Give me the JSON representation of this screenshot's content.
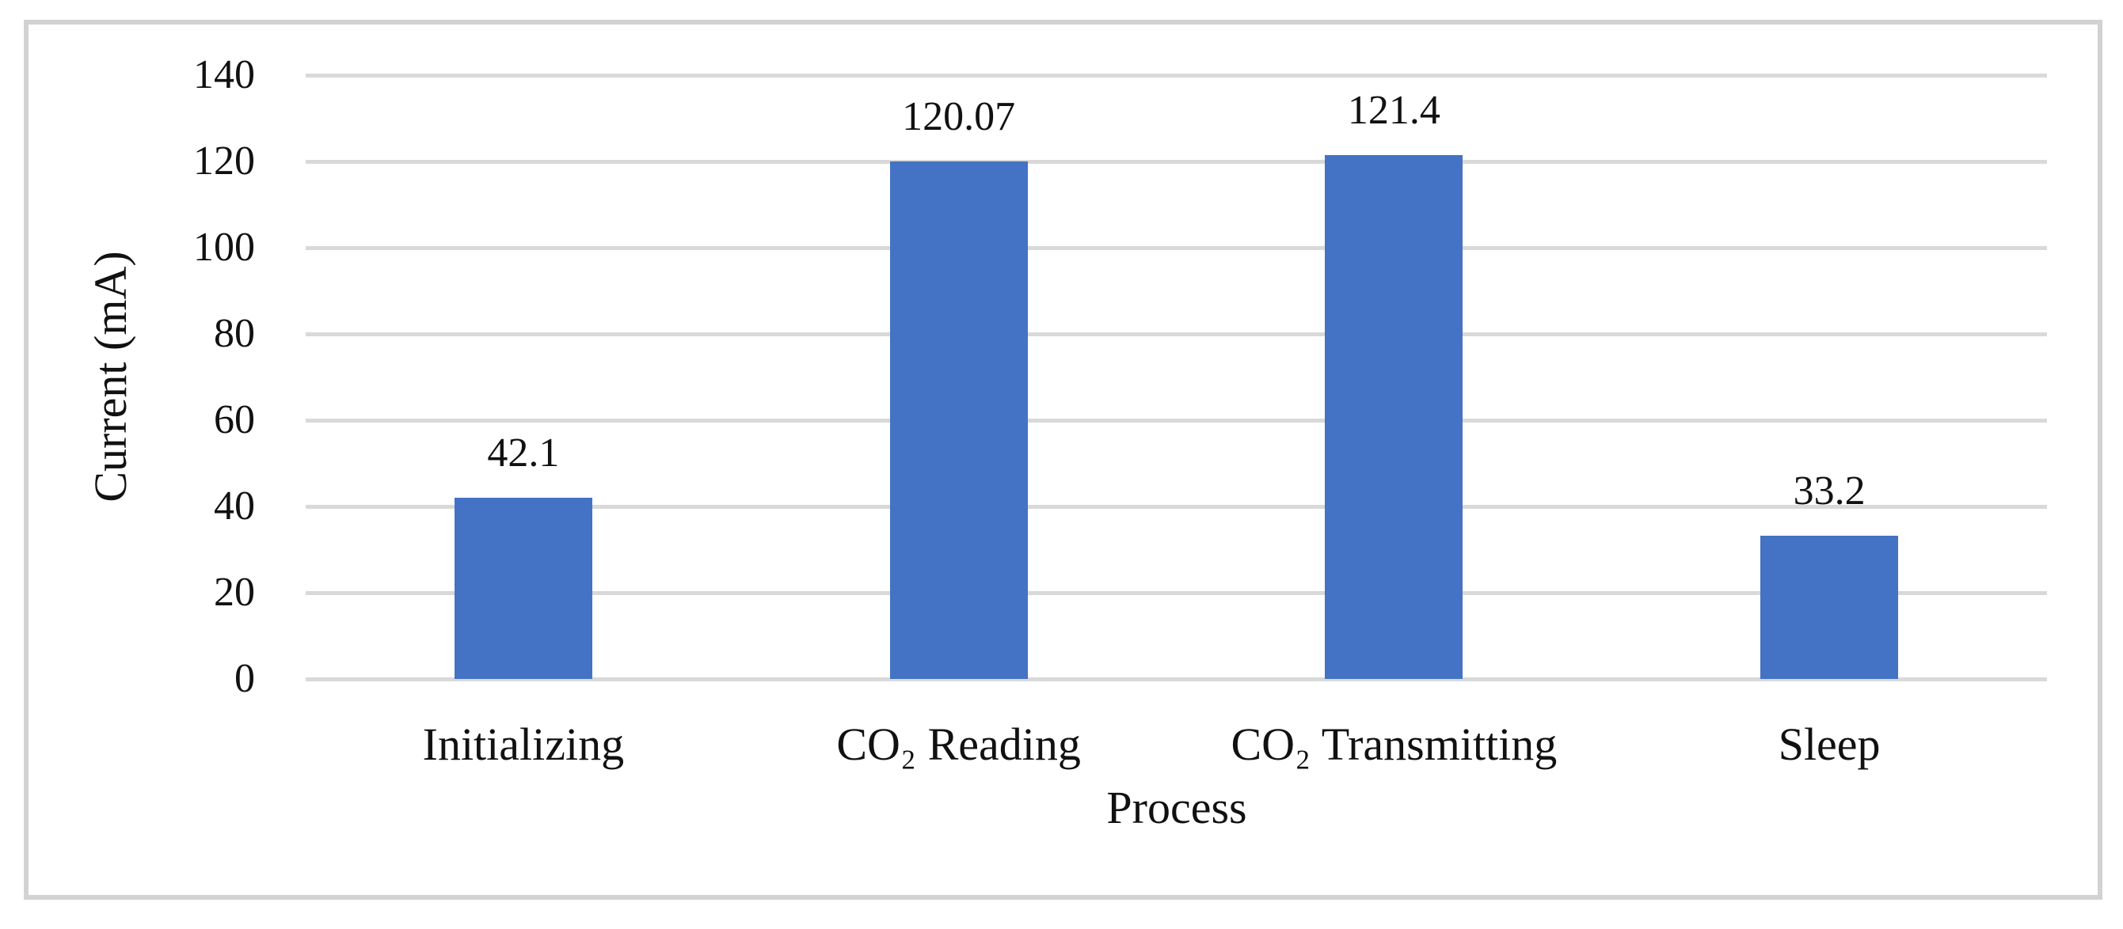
{
  "figure": {
    "background": "#ffffff",
    "frame_border_color": "#d2d2d2"
  },
  "chart_data": {
    "type": "bar",
    "title": "",
    "categories": [
      "Initializing",
      "CO₂ Reading",
      "CO₂ Transmitting",
      "Sleep"
    ],
    "values": [
      42.1,
      120.07,
      121.4,
      33.2
    ],
    "data_labels": [
      "42.1",
      "120.07",
      "121.4",
      "33.2"
    ],
    "xlabel": "Process",
    "ylabel": "Current (mA)",
    "ylim": [
      0,
      140
    ],
    "ytick_step": 20,
    "ytick_labels": [
      "0",
      "20",
      "40",
      "60",
      "80",
      "100",
      "120",
      "140"
    ],
    "grid": true,
    "legend": "none",
    "bar_color": "#4472C4",
    "gridline_color": "#d9d9d9",
    "text_color": "#111111"
  }
}
